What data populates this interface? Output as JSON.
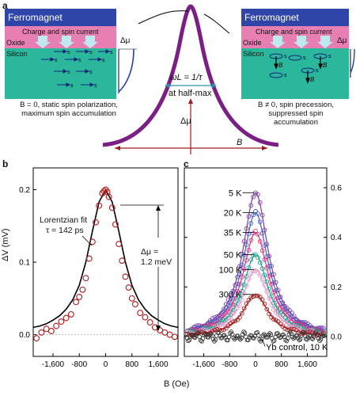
{
  "panel_a": {
    "letter": "a",
    "left_box": {
      "ferromagnet": "Ferromagnet",
      "current": "Charge and spin current",
      "oxide": "Oxide",
      "silicon": "Silicon",
      "spin": "s",
      "delta_mu": "Δμ",
      "caption_line1": "B = 0, static spin polarization,",
      "caption_line2": "maximum spin accumulation"
    },
    "right_box": {
      "ferromagnet": "Ferromagnet",
      "current": "Charge and spin current",
      "oxide": "Oxide",
      "silicon": "Silicon",
      "spin": "s",
      "field": "B",
      "delta_mu": "Δμ",
      "caption_line1": "B ≠ 0, spin precession,",
      "caption_line2": "suppressed spin",
      "caption_line3": "accumulation"
    },
    "center": {
      "omega": "ωL = 1/τ",
      "halfmax": "at half-max",
      "delta_mu": "Δμ",
      "b_axis": "B"
    }
  },
  "panel_b": {
    "letter": "b",
    "ylabel": "ΔV (mV)",
    "fit_line1": "Lorentzian fit",
    "fit_line2": "τ = 142 ps",
    "dmu_line1": "Δμ =",
    "dmu_line2": "1.2 meV"
  },
  "panel_c": {
    "letter": "c",
    "control_label": "Yb control, 10 K"
  },
  "shared": {
    "xlabel": "B (Oe)"
  },
  "chart_data": [
    {
      "type": "scatter",
      "panel": "b",
      "xlabel": "B (Oe)",
      "ylabel": "ΔV (mV)",
      "xlim": [
        -2200,
        2200
      ],
      "ylim": [
        -0.03,
        0.23
      ],
      "x_ticks": [
        "-1,600",
        "-800",
        "0",
        "800",
        "1,600"
      ],
      "y_ticks": [
        "0.0",
        "0.1",
        "0.2"
      ],
      "series": [
        {
          "name": "data",
          "color": "#b01c1c",
          "x": [
            -2100,
            -1950,
            -1800,
            -1650,
            -1500,
            -1350,
            -1200,
            -1050,
            -900,
            -800,
            -700,
            -600,
            -500,
            -400,
            -300,
            -200,
            -100,
            -50,
            0,
            50,
            100,
            200,
            300,
            400,
            500,
            600,
            700,
            800,
            900,
            1050,
            1200,
            1350,
            1500,
            1650,
            1800,
            1950,
            2100
          ],
          "y": [
            -0.005,
            0.003,
            0.008,
            0.005,
            0.012,
            0.018,
            0.023,
            0.028,
            0.045,
            0.052,
            0.062,
            0.078,
            0.105,
            0.128,
            0.155,
            0.178,
            0.195,
            0.198,
            0.2,
            0.197,
            0.19,
            0.175,
            0.152,
            0.125,
            0.102,
            0.08,
            0.065,
            0.05,
            0.042,
            0.03,
            0.024,
            0.017,
            0.01,
            0.006,
            0.003,
            0.0,
            -0.003
          ]
        },
        {
          "name": "Lorentzian fit",
          "color": "#000000",
          "x": [
            -2200,
            -2000,
            -1800,
            -1600,
            -1400,
            -1200,
            -1000,
            -800,
            -600,
            -400,
            -200,
            0,
            200,
            400,
            600,
            800,
            1000,
            1200,
            1400,
            1600,
            1800,
            2000,
            2200
          ],
          "y": [
            0.01,
            0.012,
            0.015,
            0.02,
            0.026,
            0.035,
            0.048,
            0.068,
            0.1,
            0.143,
            0.183,
            0.2,
            0.183,
            0.143,
            0.1,
            0.068,
            0.048,
            0.035,
            0.026,
            0.02,
            0.015,
            0.012,
            0.01
          ]
        }
      ]
    },
    {
      "type": "scatter",
      "panel": "c",
      "xlabel": "B (Oe)",
      "ylabel": "",
      "xlim": [
        -2200,
        2200
      ],
      "ylim": [
        -0.08,
        0.68
      ],
      "x_ticks": [
        "-1,600",
        "-800",
        "0",
        "800",
        "1,600"
      ],
      "y_ticks": [
        "0.0",
        "0.2",
        "0.4",
        "0.6"
      ],
      "lorentzian_width_oe": 480,
      "series": [
        {
          "name": "5 K",
          "color": "#7b3fa0",
          "peak": 0.58
        },
        {
          "name": "20 K",
          "color": "#4a5ec4",
          "peak": 0.5
        },
        {
          "name": "35 K",
          "color": "#e0337f",
          "peak": 0.42
        },
        {
          "name": "50 K",
          "color": "#19a090",
          "peak": 0.33
        },
        {
          "name": "100 K",
          "color": "#e39ac8",
          "peak": 0.27
        },
        {
          "name": "300 K",
          "color": "#a01b1b",
          "peak": 0.17
        },
        {
          "name": "Yb control, 10 K",
          "color": "#333333",
          "peak": 0.0
        }
      ]
    }
  ]
}
